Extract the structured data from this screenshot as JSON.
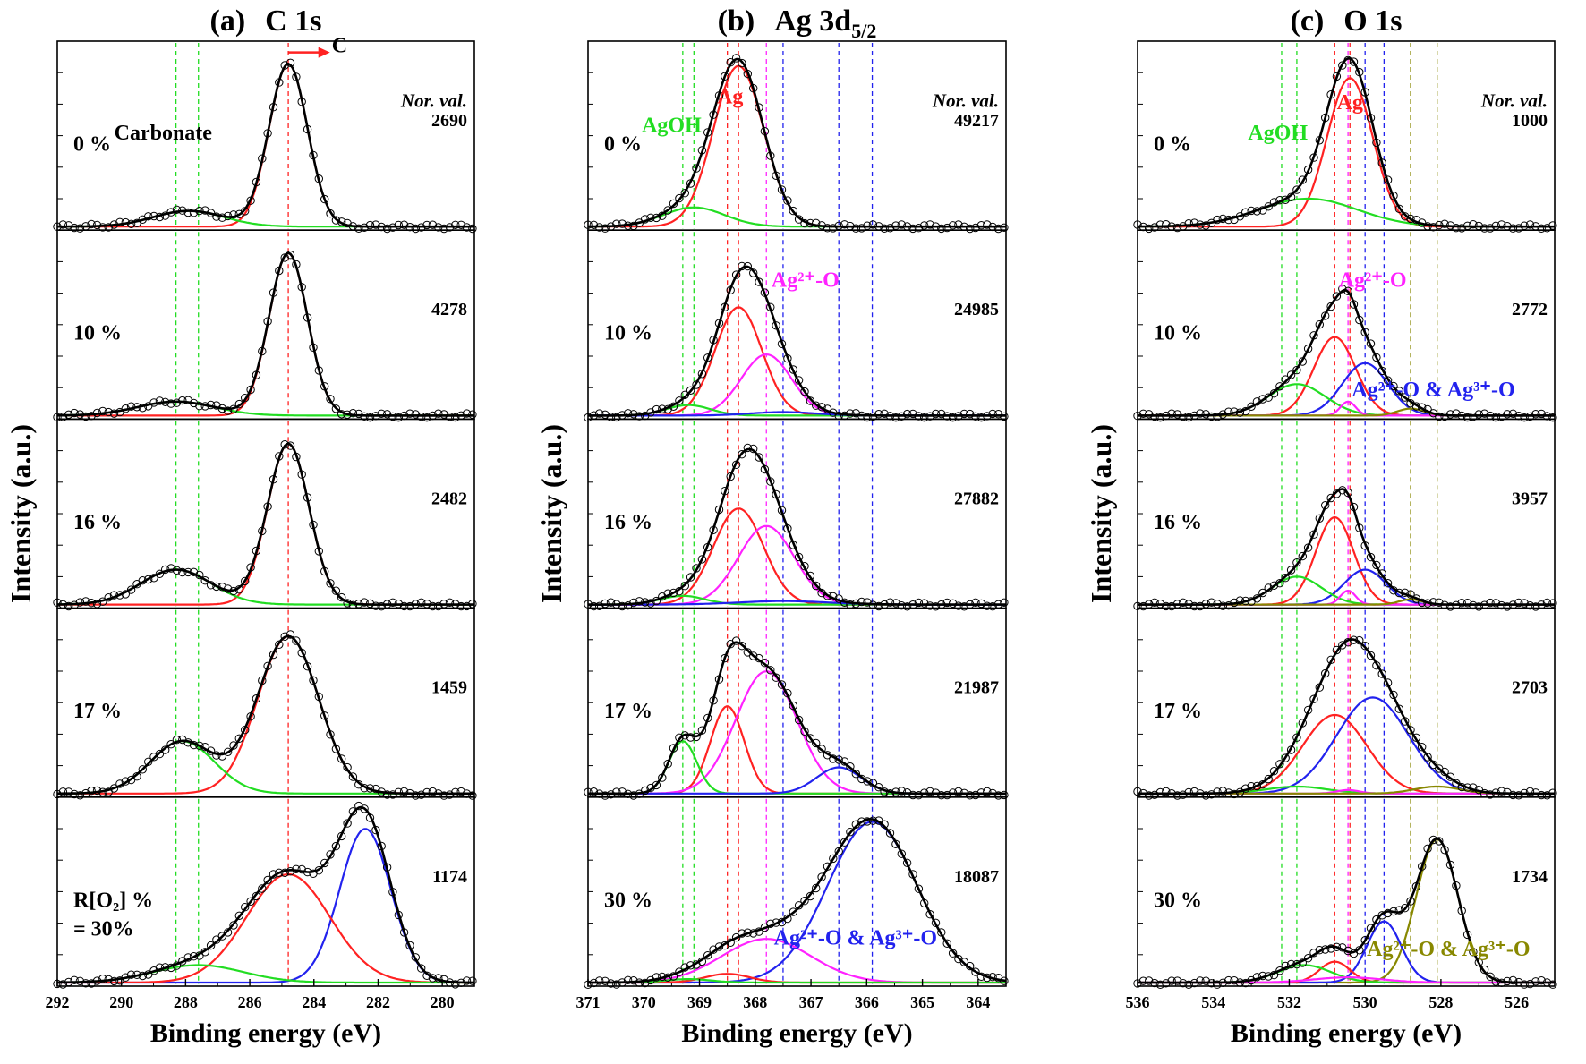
{
  "chart_data": [
    {
      "type": "line",
      "panel_label": "(a)",
      "title": "C 1s",
      "xlabel": "Binding energy (eV)",
      "ylabel": "Intensity (a.u.)",
      "xlim": [
        292,
        279
      ],
      "x_reversed": true,
      "xticks": [
        "292",
        "290",
        "288",
        "286",
        "284",
        "282",
        "280"
      ],
      "norm_header": "Nor. val.",
      "ref_lines": [
        {
          "x": 288.3,
          "color": "#22dd22"
        },
        {
          "x": 287.6,
          "color": "#22dd22"
        },
        {
          "x": 284.8,
          "color": "#ff2222"
        }
      ],
      "annotations": [
        {
          "text": "Carbonate",
          "x": 288.7,
          "panel": 0,
          "yf": 0.52,
          "color": "#000000"
        },
        {
          "text": "C",
          "x": 283.2,
          "panel": 0,
          "yf": 0.06,
          "color": "#000000"
        }
      ],
      "arrow": {
        "panel": 0,
        "x_from": 284.8,
        "x_to": 283.5,
        "yf": 0.06,
        "color": "#ff2222"
      },
      "panels": [
        {
          "label": "0 %",
          "norm_value": "2690",
          "components": [
            {
              "color": "#ff2222",
              "center": 284.8,
              "width": 0.6,
              "height": 0.93
            },
            {
              "color": "#22dd22",
              "center": 287.9,
              "width": 1.1,
              "height": 0.09
            }
          ]
        },
        {
          "label": "10 %",
          "norm_value": "4278",
          "components": [
            {
              "color": "#ff2222",
              "center": 284.8,
              "width": 0.6,
              "height": 0.93
            },
            {
              "color": "#22dd22",
              "center": 288.3,
              "width": 1.2,
              "height": 0.08
            }
          ]
        },
        {
          "label": "16 %",
          "norm_value": "2482",
          "components": [
            {
              "color": "#ff2222",
              "center": 284.8,
              "width": 0.65,
              "height": 0.92
            },
            {
              "color": "#22dd22",
              "center": 288.3,
              "width": 1.1,
              "height": 0.2
            }
          ]
        },
        {
          "label": "17 %",
          "norm_value": "1459",
          "components": [
            {
              "color": "#ff2222",
              "center": 284.8,
              "width": 0.95,
              "height": 0.9
            },
            {
              "color": "#22dd22",
              "center": 288.1,
              "width": 1.0,
              "height": 0.3
            }
          ]
        },
        {
          "label": "R[O₂] %",
          "label2": "= 30%",
          "norm_value": "1174",
          "components": [
            {
              "color": "#2222ee",
              "center": 282.4,
              "width": 0.8,
              "height": 0.88
            },
            {
              "color": "#ff2222",
              "center": 284.8,
              "width": 1.3,
              "height": 0.62
            },
            {
              "color": "#22dd22",
              "center": 287.6,
              "width": 1.4,
              "height": 0.1
            }
          ]
        }
      ]
    },
    {
      "type": "line",
      "panel_label": "(b)",
      "title": "Ag 3d",
      "title_sub": "5/2",
      "xlabel": "Binding energy (eV)",
      "ylabel": "Intensity (a.u.)",
      "xlim": [
        371,
        363.5
      ],
      "x_reversed": true,
      "xticks": [
        "371",
        "370",
        "369",
        "368",
        "367",
        "366",
        "365",
        "364"
      ],
      "norm_header": "Nor. val.",
      "ref_lines": [
        {
          "x": 369.3,
          "color": "#22dd22"
        },
        {
          "x": 369.1,
          "color": "#22dd22"
        },
        {
          "x": 368.5,
          "color": "#ff2222"
        },
        {
          "x": 368.3,
          "color": "#ff2222"
        },
        {
          "x": 367.8,
          "color": "#ff22ff"
        },
        {
          "x": 367.5,
          "color": "#2222ee"
        },
        {
          "x": 366.5,
          "color": "#2222ee"
        },
        {
          "x": 365.9,
          "color": "#2222ee"
        }
      ],
      "annotations": [
        {
          "text": "AgOH",
          "x": 369.5,
          "panel": 0,
          "yf": 0.48,
          "color": "#22dd22"
        },
        {
          "text": "Ag",
          "x": 368.45,
          "panel": 0,
          "yf": 0.33,
          "color": "#ff2222"
        },
        {
          "text": "Ag²⁺-O",
          "x": 367.1,
          "panel": 1,
          "yf": 0.3,
          "color": "#ff22ff"
        },
        {
          "text": "Ag²⁺-O & Ag³⁺-O",
          "x": 366.2,
          "panel": 4,
          "yf": 0.78,
          "color": "#2222ee"
        }
      ],
      "panels": [
        {
          "label": "0 %",
          "norm_value": "49217",
          "components": [
            {
              "color": "#ff2222",
              "center": 368.3,
              "width": 0.45,
              "height": 0.92
            },
            {
              "color": "#22dd22",
              "center": 369.1,
              "width": 0.55,
              "height": 0.11
            }
          ]
        },
        {
          "label": "10 %",
          "norm_value": "24985",
          "components": [
            {
              "color": "#ff2222",
              "center": 368.3,
              "width": 0.42,
              "height": 0.62
            },
            {
              "color": "#ff22ff",
              "center": 367.8,
              "width": 0.45,
              "height": 0.35
            },
            {
              "color": "#22dd22",
              "center": 369.2,
              "width": 0.4,
              "height": 0.06
            },
            {
              "color": "#2222ee",
              "center": 367.5,
              "width": 0.6,
              "height": 0.02
            }
          ]
        },
        {
          "label": "16 %",
          "norm_value": "27882",
          "components": [
            {
              "color": "#ff2222",
              "center": 368.3,
              "width": 0.45,
              "height": 0.55
            },
            {
              "color": "#ff22ff",
              "center": 367.8,
              "width": 0.5,
              "height": 0.45
            },
            {
              "color": "#22dd22",
              "center": 369.3,
              "width": 0.4,
              "height": 0.05
            },
            {
              "color": "#2222ee",
              "center": 367.5,
              "width": 0.8,
              "height": 0.02
            }
          ]
        },
        {
          "label": "17 %",
          "norm_value": "21987",
          "components": [
            {
              "color": "#ff2222",
              "center": 368.5,
              "width": 0.3,
              "height": 0.5
            },
            {
              "color": "#ff22ff",
              "center": 367.8,
              "width": 0.55,
              "height": 0.7
            },
            {
              "color": "#22dd22",
              "center": 369.3,
              "width": 0.25,
              "height": 0.3
            },
            {
              "color": "#2222ee",
              "center": 366.5,
              "width": 0.4,
              "height": 0.15
            }
          ]
        },
        {
          "label": "30 %",
          "norm_value": "18087",
          "components": [
            {
              "color": "#2222ee",
              "center": 365.9,
              "width": 0.8,
              "height": 0.92
            },
            {
              "color": "#ff22ff",
              "center": 367.8,
              "width": 0.8,
              "height": 0.25
            },
            {
              "color": "#ff2222",
              "center": 368.5,
              "width": 0.4,
              "height": 0.05
            },
            {
              "color": "#22dd22",
              "center": 369.2,
              "width": 0.4,
              "height": 0.02
            }
          ]
        }
      ]
    },
    {
      "type": "line",
      "panel_label": "(c)",
      "title": "O 1s",
      "xlabel": "Binding energy (eV)",
      "ylabel": "Intensity (a.u.)",
      "xlim": [
        536,
        525
      ],
      "x_reversed": true,
      "xticks": [
        "536",
        "534",
        "532",
        "530",
        "528",
        "526"
      ],
      "norm_header": "Nor. val.",
      "ref_lines": [
        {
          "x": 532.2,
          "color": "#22dd22"
        },
        {
          "x": 531.8,
          "color": "#22dd22"
        },
        {
          "x": 530.8,
          "color": "#ff2222"
        },
        {
          "x": 530.4,
          "color": "#ff2222"
        },
        {
          "x": 530.45,
          "color": "#ff22ff"
        },
        {
          "x": 530.0,
          "color": "#2222ee"
        },
        {
          "x": 529.5,
          "color": "#2222ee"
        },
        {
          "x": 528.8,
          "color": "#888800"
        },
        {
          "x": 528.1,
          "color": "#888800"
        }
      ],
      "annotations": [
        {
          "text": "AgOH",
          "x": 532.3,
          "panel": 0,
          "yf": 0.52,
          "color": "#22dd22"
        },
        {
          "text": "Ag",
          "x": 530.4,
          "panel": 0,
          "yf": 0.36,
          "color": "#ff2222"
        },
        {
          "text": "Ag²⁺-O",
          "x": 529.8,
          "panel": 1,
          "yf": 0.3,
          "color": "#ff22ff"
        },
        {
          "text": "Ag²⁺-O & Ag³⁺-O",
          "x": 528.2,
          "panel": 1,
          "yf": 0.88,
          "color": "#2222ee"
        },
        {
          "text": "Ag²⁺-O & Ag³⁺-O",
          "x": 527.8,
          "panel": 4,
          "yf": 0.84,
          "color": "#888800"
        }
      ],
      "panels": [
        {
          "label": "0 %",
          "norm_value": "1000",
          "components": [
            {
              "color": "#ff2222",
              "center": 530.4,
              "width": 0.6,
              "height": 0.85
            },
            {
              "color": "#22dd22",
              "center": 531.5,
              "width": 1.3,
              "height": 0.16
            }
          ]
        },
        {
          "label": "10 %",
          "norm_value": "2772",
          "components": [
            {
              "color": "#ff2222",
              "center": 530.8,
              "width": 0.55,
              "height": 0.45
            },
            {
              "color": "#2222ee",
              "center": 530.0,
              "width": 0.6,
              "height": 0.3
            },
            {
              "color": "#22dd22",
              "center": 531.8,
              "width": 0.75,
              "height": 0.18
            },
            {
              "color": "#ff22ff",
              "center": 530.45,
              "width": 0.2,
              "height": 0.08
            },
            {
              "color": "#888800",
              "center": 528.8,
              "width": 0.35,
              "height": 0.04
            }
          ]
        },
        {
          "label": "16 %",
          "norm_value": "3957",
          "components": [
            {
              "color": "#ff2222",
              "center": 530.8,
              "width": 0.5,
              "height": 0.5
            },
            {
              "color": "#2222ee",
              "center": 530.0,
              "width": 0.55,
              "height": 0.2
            },
            {
              "color": "#22dd22",
              "center": 531.8,
              "width": 0.65,
              "height": 0.16
            },
            {
              "color": "#ff22ff",
              "center": 530.45,
              "width": 0.2,
              "height": 0.08
            },
            {
              "color": "#888800",
              "center": 528.8,
              "width": 0.3,
              "height": 0.03
            }
          ]
        },
        {
          "label": "17 %",
          "norm_value": "2703",
          "components": [
            {
              "color": "#ff2222",
              "center": 530.8,
              "width": 0.85,
              "height": 0.45
            },
            {
              "color": "#2222ee",
              "center": 529.8,
              "width": 0.95,
              "height": 0.55
            },
            {
              "color": "#22dd22",
              "center": 531.8,
              "width": 0.8,
              "height": 0.04
            },
            {
              "color": "#ff22ff",
              "center": 530.45,
              "width": 0.3,
              "height": 0.02
            },
            {
              "color": "#888800",
              "center": 528.1,
              "width": 0.6,
              "height": 0.04
            }
          ]
        },
        {
          "label": "30 %",
          "norm_value": "1734",
          "components": [
            {
              "color": "#888800",
              "center": 528.1,
              "width": 0.55,
              "height": 0.82
            },
            {
              "color": "#2222ee",
              "center": 529.5,
              "width": 0.45,
              "height": 0.35
            },
            {
              "color": "#ff2222",
              "center": 530.8,
              "width": 0.4,
              "height": 0.12
            },
            {
              "color": "#22dd22",
              "center": 531.6,
              "width": 0.7,
              "height": 0.1
            },
            {
              "color": "#ff22ff",
              "center": 530.45,
              "width": 0.9,
              "height": 0.03
            }
          ]
        }
      ]
    }
  ]
}
